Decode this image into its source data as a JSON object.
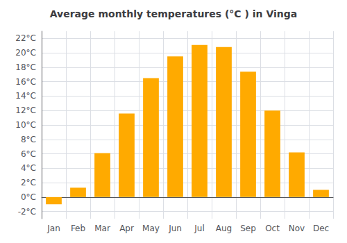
{
  "chart_data": {
    "type": "bar",
    "title": "Average monthly temperatures (°C ) in Vinga",
    "categories": [
      "Jan",
      "Feb",
      "Mar",
      "Apr",
      "May",
      "Jun",
      "Jul",
      "Aug",
      "Sep",
      "Oct",
      "Nov",
      "Dec"
    ],
    "values": [
      -1.0,
      1.3,
      6.1,
      11.6,
      16.5,
      19.5,
      21.1,
      20.8,
      17.4,
      12.0,
      6.2,
      1.0
    ],
    "color": "#FFAA00",
    "ylim": [
      -3,
      23
    ],
    "yticks": [
      {
        "value": -2,
        "label": "-2°C"
      },
      {
        "value": 0,
        "label": "0°C"
      },
      {
        "value": 2,
        "label": "2°C"
      },
      {
        "value": 4,
        "label": "4°C"
      },
      {
        "value": 6,
        "label": "6°C"
      },
      {
        "value": 8,
        "label": "8°C"
      },
      {
        "value": 10,
        "label": "10°C"
      },
      {
        "value": 12,
        "label": "12°C"
      },
      {
        "value": 14,
        "label": "14°C"
      },
      {
        "value": 16,
        "label": "16°C"
      },
      {
        "value": 18,
        "label": "18°C"
      },
      {
        "value": 20,
        "label": "20°C"
      },
      {
        "value": 22,
        "label": "22°C"
      }
    ],
    "grid": true
  }
}
